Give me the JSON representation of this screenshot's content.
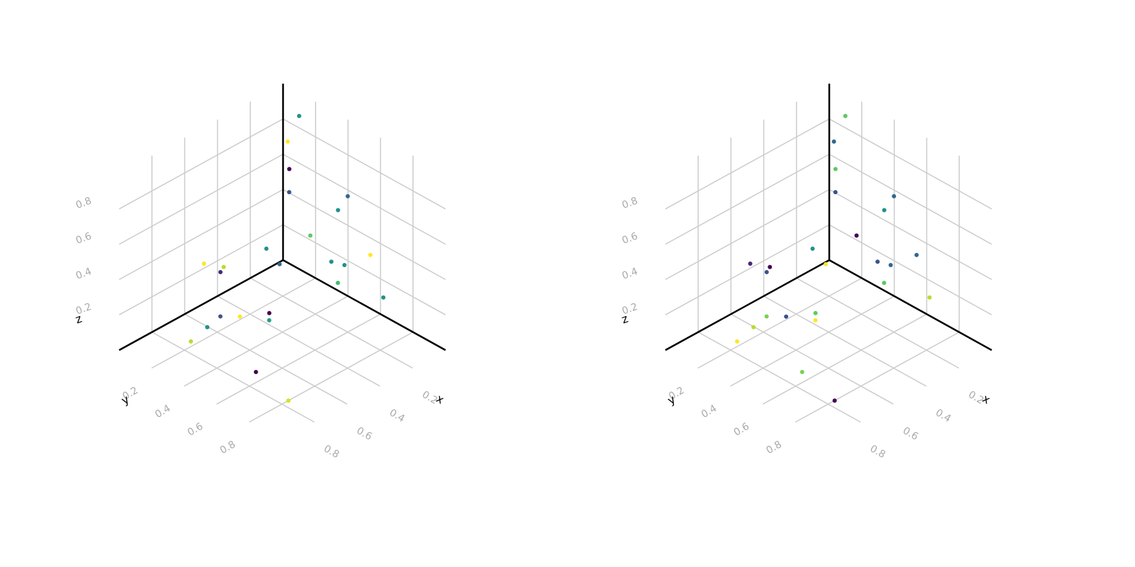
{
  "chart_data": [
    {
      "type": "scatter3d",
      "x_label": "x",
      "y_label": "y",
      "z_label": "z",
      "xlim": [
        0,
        1
      ],
      "ylim": [
        0,
        1
      ],
      "zlim": [
        0,
        1
      ],
      "xticks": [
        0.2,
        0.4,
        0.6,
        0.8
      ],
      "yticks": [
        0.2,
        0.4,
        0.6,
        0.8
      ],
      "zticks": [
        0.2,
        0.4,
        0.6,
        0.8
      ],
      "grid": true,
      "x": [
        0.1,
        0.14,
        0.18,
        0.23,
        0.2,
        0.18,
        0.22,
        0.3,
        0.16,
        0.3,
        0.21,
        0.28,
        0.28,
        0.29,
        0.74,
        0.63,
        0.59,
        0.63,
        0.54,
        0.59,
        0.64,
        0.73,
        0.83,
        0.78,
        0.78
      ],
      "y": [
        0.2,
        0.17,
        0.22,
        0.27,
        0.6,
        0.52,
        0.39,
        0.2,
        0.14,
        0.6,
        0.59,
        0.82,
        0.62,
        0.91,
        0.26,
        0.27,
        0.21,
        0.37,
        0.46,
        0.51,
        0.26,
        0.27,
        0.27,
        0.62,
        0.82
      ],
      "z": [
        0.97,
        0.83,
        0.72,
        0.64,
        0.77,
        0.64,
        0.45,
        0.32,
        0.13,
        0.45,
        0.38,
        0.59,
        0.33,
        0.4,
        0.49,
        0.42,
        0.34,
        0.19,
        0.21,
        0.22,
        0.14,
        0.13,
        0.1,
        0.08,
        0.02
      ],
      "colors": [
        "#21918c",
        "#fde725",
        "#440154",
        "#3b528b",
        "#31688e",
        "#21918c",
        "#5ec962",
        "#21918c",
        "#31688e",
        "#21918c",
        "#21918c",
        "#fde725",
        "#3fbc73",
        "#21918c",
        "#fde725",
        "#b5de2b",
        "#482878",
        "#fde725",
        "#440154",
        "#1fa187",
        "#3b528b",
        "#21918c",
        "#b5de2b",
        "#440154",
        "#d8e219"
      ]
    },
    {
      "type": "scatter3d",
      "x_label": "x",
      "y_label": "y",
      "z_label": "z",
      "xlim": [
        0,
        1
      ],
      "ylim": [
        0,
        1
      ],
      "zlim": [
        0,
        1
      ],
      "xticks": [
        0.2,
        0.4,
        0.6,
        0.8
      ],
      "yticks": [
        0.2,
        0.4,
        0.6,
        0.8
      ],
      "zticks": [
        0.2,
        0.4,
        0.6,
        0.8
      ],
      "grid": true,
      "x": [
        0.1,
        0.14,
        0.18,
        0.23,
        0.2,
        0.18,
        0.22,
        0.3,
        0.16,
        0.3,
        0.21,
        0.28,
        0.28,
        0.29,
        0.74,
        0.63,
        0.59,
        0.63,
        0.54,
        0.59,
        0.64,
        0.73,
        0.83,
        0.78,
        0.78
      ],
      "y": [
        0.2,
        0.17,
        0.22,
        0.27,
        0.6,
        0.52,
        0.39,
        0.2,
        0.14,
        0.6,
        0.59,
        0.82,
        0.62,
        0.91,
        0.26,
        0.27,
        0.21,
        0.37,
        0.46,
        0.51,
        0.26,
        0.27,
        0.27,
        0.62,
        0.82
      ],
      "z": [
        0.97,
        0.83,
        0.72,
        0.64,
        0.77,
        0.64,
        0.45,
        0.32,
        0.13,
        0.45,
        0.38,
        0.59,
        0.33,
        0.4,
        0.49,
        0.42,
        0.34,
        0.19,
        0.21,
        0.22,
        0.14,
        0.13,
        0.1,
        0.08,
        0.02
      ],
      "colors": [
        "#5ec962",
        "#31688e",
        "#5ec962",
        "#3b528b",
        "#31688e",
        "#21918c",
        "#440154",
        "#21918c",
        "#fde725",
        "#3b528b",
        "#31688e",
        "#31688e",
        "#5ec962",
        "#b5de2b",
        "#482878",
        "#440154",
        "#3b528b",
        "#3b528b",
        "#5ec962",
        "#fde725",
        "#7ad151",
        "#b5de2b",
        "#fde725",
        "#7ad151",
        "#440154"
      ]
    }
  ]
}
